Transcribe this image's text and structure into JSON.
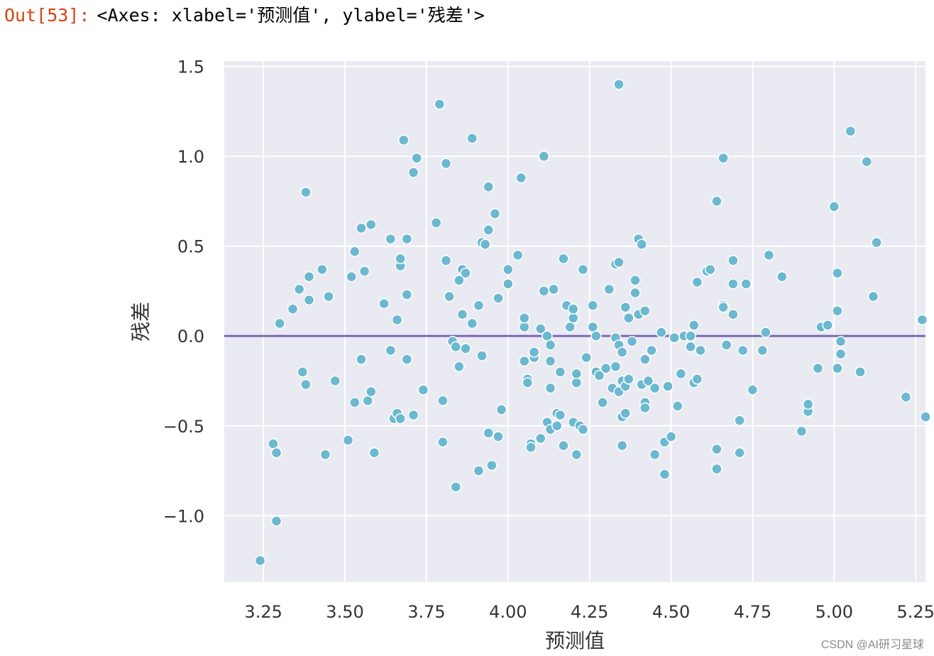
{
  "output_prompt": "Out[53]:",
  "output_text": "<Axes: xlabel='预测值', ylabel='残差'>",
  "watermark": "CSDN @AI研习星球",
  "colors": {
    "background": "#eaeaf2",
    "grid": "#ffffff",
    "points": "#6bb8d0",
    "point_edge": "#ffffff",
    "hline": "#7b6bb5",
    "prompt": "#d84315"
  },
  "chart_data": {
    "type": "scatter",
    "title": "",
    "xlabel": "预测值",
    "ylabel": "残差",
    "xlim": [
      3.13,
      5.28
    ],
    "ylim": [
      -1.37,
      1.53
    ],
    "xticks": [
      3.25,
      3.5,
      3.75,
      4.0,
      4.25,
      4.5,
      4.75,
      5.0,
      5.25
    ],
    "xtick_labels": [
      "3.25",
      "3.50",
      "3.75",
      "4.00",
      "4.25",
      "4.50",
      "4.75",
      "5.00",
      "5.25"
    ],
    "yticks": [
      1.5,
      1.0,
      0.5,
      0.0,
      -0.5,
      -1.0
    ],
    "ytick_labels": [
      "1.5",
      "1.0",
      "0.5",
      "0.0",
      "−0.5",
      "−1.0"
    ],
    "grid": true,
    "hline": 0.0,
    "points": [
      [
        3.24,
        -1.25
      ],
      [
        3.28,
        -0.6
      ],
      [
        3.29,
        -0.65
      ],
      [
        3.29,
        -1.03
      ],
      [
        3.3,
        0.07
      ],
      [
        3.34,
        0.15
      ],
      [
        3.36,
        0.26
      ],
      [
        3.37,
        -0.2
      ],
      [
        3.38,
        -0.27
      ],
      [
        3.38,
        0.8
      ],
      [
        3.39,
        0.33
      ],
      [
        3.39,
        0.2
      ],
      [
        3.43,
        0.37
      ],
      [
        3.44,
        -0.66
      ],
      [
        3.45,
        0.22
      ],
      [
        3.47,
        -0.25
      ],
      [
        3.51,
        -0.58
      ],
      [
        3.52,
        0.33
      ],
      [
        3.53,
        0.47
      ],
      [
        3.53,
        -0.37
      ],
      [
        3.55,
        0.6
      ],
      [
        3.55,
        -0.13
      ],
      [
        3.56,
        0.36
      ],
      [
        3.57,
        -0.36
      ],
      [
        3.58,
        -0.31
      ],
      [
        3.58,
        0.62
      ],
      [
        3.59,
        -0.65
      ],
      [
        3.62,
        0.18
      ],
      [
        3.64,
        0.54
      ],
      [
        3.64,
        -0.08
      ],
      [
        3.65,
        -0.46
      ],
      [
        3.66,
        0.09
      ],
      [
        3.66,
        -0.43
      ],
      [
        3.67,
        -0.46
      ],
      [
        3.67,
        0.39
      ],
      [
        3.67,
        0.43
      ],
      [
        3.68,
        1.09
      ],
      [
        3.69,
        0.54
      ],
      [
        3.69,
        0.23
      ],
      [
        3.69,
        -0.13
      ],
      [
        3.71,
        0.91
      ],
      [
        3.71,
        -0.44
      ],
      [
        3.72,
        0.99
      ],
      [
        3.74,
        -0.3
      ],
      [
        3.78,
        0.63
      ],
      [
        3.79,
        1.29
      ],
      [
        3.8,
        -0.36
      ],
      [
        3.8,
        -0.59
      ],
      [
        3.81,
        0.96
      ],
      [
        3.81,
        0.42
      ],
      [
        3.82,
        0.22
      ],
      [
        3.83,
        -0.03
      ],
      [
        3.84,
        -0.06
      ],
      [
        3.84,
        -0.84
      ],
      [
        3.85,
        0.31
      ],
      [
        3.85,
        -0.17
      ],
      [
        3.86,
        0.37
      ],
      [
        3.86,
        0.12
      ],
      [
        3.87,
        -0.07
      ],
      [
        3.87,
        0.35
      ],
      [
        3.89,
        0.07
      ],
      [
        3.89,
        1.1
      ],
      [
        3.91,
        0.17
      ],
      [
        3.91,
        -0.75
      ],
      [
        3.92,
        0.52
      ],
      [
        3.92,
        -0.11
      ],
      [
        3.93,
        0.51
      ],
      [
        3.94,
        0.59
      ],
      [
        3.94,
        0.83
      ],
      [
        3.94,
        -0.54
      ],
      [
        3.95,
        -0.72
      ],
      [
        3.96,
        0.68
      ],
      [
        3.97,
        0.21
      ],
      [
        3.97,
        -0.56
      ],
      [
        3.98,
        -0.41
      ],
      [
        4.0,
        0.37
      ],
      [
        4.0,
        0.29
      ],
      [
        4.03,
        0.45
      ],
      [
        4.04,
        0.88
      ],
      [
        4.05,
        -0.14
      ],
      [
        4.05,
        0.05
      ],
      [
        4.05,
        0.1
      ],
      [
        4.06,
        -0.24
      ],
      [
        4.06,
        -0.26
      ],
      [
        4.07,
        -0.6
      ],
      [
        4.07,
        -0.62
      ],
      [
        4.08,
        -0.12
      ],
      [
        4.08,
        -0.09
      ],
      [
        4.1,
        -0.57
      ],
      [
        4.1,
        0.04
      ],
      [
        4.11,
        1.0
      ],
      [
        4.11,
        0.25
      ],
      [
        4.12,
        0.0
      ],
      [
        4.12,
        -0.48
      ],
      [
        4.13,
        -0.52
      ],
      [
        4.13,
        -0.14
      ],
      [
        4.13,
        -0.29
      ],
      [
        4.13,
        -0.05
      ],
      [
        4.14,
        0.26
      ],
      [
        4.15,
        -0.5
      ],
      [
        4.15,
        -0.43
      ],
      [
        4.16,
        -0.2
      ],
      [
        4.16,
        -0.44
      ],
      [
        4.17,
        -0.61
      ],
      [
        4.17,
        0.43
      ],
      [
        4.18,
        0.17
      ],
      [
        4.19,
        0.05
      ],
      [
        4.2,
        0.1
      ],
      [
        4.2,
        0.15
      ],
      [
        4.2,
        -0.48
      ],
      [
        4.21,
        -0.26
      ],
      [
        4.21,
        -0.66
      ],
      [
        4.21,
        -0.21
      ],
      [
        4.22,
        -0.5
      ],
      [
        4.23,
        -0.52
      ],
      [
        4.23,
        0.37
      ],
      [
        4.24,
        -0.12
      ],
      [
        4.26,
        0.17
      ],
      [
        4.26,
        0.05
      ],
      [
        4.27,
        0.0
      ],
      [
        4.27,
        -0.2
      ],
      [
        4.28,
        -0.22
      ],
      [
        4.29,
        -0.37
      ],
      [
        4.3,
        -0.18
      ],
      [
        4.31,
        0.26
      ],
      [
        4.32,
        -0.29
      ],
      [
        4.33,
        0.4
      ],
      [
        4.33,
        -0.01
      ],
      [
        4.33,
        -0.17
      ],
      [
        4.34,
        -0.31
      ],
      [
        4.34,
        -0.05
      ],
      [
        4.34,
        0.41
      ],
      [
        4.34,
        1.4
      ],
      [
        4.35,
        -0.09
      ],
      [
        4.35,
        -0.25
      ],
      [
        4.35,
        -0.45
      ],
      [
        4.35,
        -0.61
      ],
      [
        4.36,
        0.16
      ],
      [
        4.36,
        -0.28
      ],
      [
        4.36,
        -0.43
      ],
      [
        4.37,
        0.1
      ],
      [
        4.37,
        -0.24
      ],
      [
        4.38,
        -0.03
      ],
      [
        4.39,
        0.24
      ],
      [
        4.39,
        0.31
      ],
      [
        4.4,
        0.12
      ],
      [
        4.4,
        0.54
      ],
      [
        4.41,
        -0.27
      ],
      [
        4.41,
        0.51
      ],
      [
        4.42,
        -0.37
      ],
      [
        4.42,
        -0.4
      ],
      [
        4.42,
        0.14
      ],
      [
        4.42,
        -0.13
      ],
      [
        4.43,
        -0.25
      ],
      [
        4.44,
        -0.08
      ],
      [
        4.45,
        -0.29
      ],
      [
        4.45,
        -0.66
      ],
      [
        4.47,
        0.02
      ],
      [
        4.48,
        -0.77
      ],
      [
        4.48,
        -0.59
      ],
      [
        4.49,
        -0.28
      ],
      [
        4.5,
        -0.56
      ],
      [
        4.51,
        -0.01
      ],
      [
        4.52,
        -0.39
      ],
      [
        4.53,
        -0.21
      ],
      [
        4.54,
        0.0
      ],
      [
        4.56,
        0.0
      ],
      [
        4.56,
        -0.06
      ],
      [
        4.57,
        -0.26
      ],
      [
        4.57,
        0.06
      ],
      [
        4.58,
        0.3
      ],
      [
        4.58,
        -0.24
      ],
      [
        4.59,
        -0.08
      ],
      [
        4.61,
        0.36
      ],
      [
        4.62,
        0.37
      ],
      [
        4.64,
        0.75
      ],
      [
        4.64,
        -0.63
      ],
      [
        4.64,
        -0.74
      ],
      [
        4.66,
        0.99
      ],
      [
        4.66,
        0.17
      ],
      [
        4.66,
        0.16
      ],
      [
        4.67,
        -0.05
      ],
      [
        4.69,
        0.42
      ],
      [
        4.69,
        0.12
      ],
      [
        4.69,
        0.29
      ],
      [
        4.71,
        -0.47
      ],
      [
        4.71,
        -0.65
      ],
      [
        4.72,
        -0.08
      ],
      [
        4.73,
        0.29
      ],
      [
        4.75,
        -0.3
      ],
      [
        4.78,
        -0.08
      ],
      [
        4.79,
        0.02
      ],
      [
        4.8,
        0.45
      ],
      [
        4.84,
        0.33
      ],
      [
        4.9,
        -0.53
      ],
      [
        4.92,
        -0.42
      ],
      [
        4.92,
        -0.38
      ],
      [
        4.95,
        -0.18
      ],
      [
        4.96,
        0.05
      ],
      [
        4.98,
        0.06
      ],
      [
        5.0,
        0.72
      ],
      [
        5.01,
        0.35
      ],
      [
        5.01,
        0.14
      ],
      [
        5.01,
        -0.18
      ],
      [
        5.02,
        -0.1
      ],
      [
        5.02,
        -0.03
      ],
      [
        5.05,
        1.14
      ],
      [
        5.08,
        -0.2
      ],
      [
        5.1,
        0.97
      ],
      [
        5.12,
        0.22
      ],
      [
        5.13,
        0.52
      ],
      [
        5.22,
        -0.34
      ],
      [
        5.27,
        0.09
      ],
      [
        5.28,
        -0.45
      ]
    ]
  }
}
